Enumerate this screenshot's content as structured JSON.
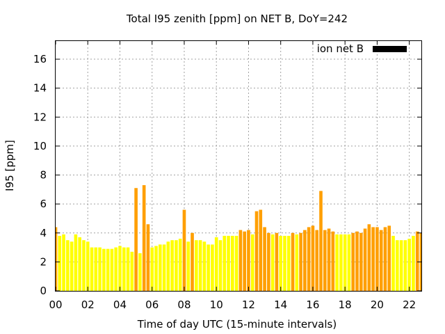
{
  "chart_data": {
    "type": "bar",
    "title": "Total I95 zenith [ppm] on NET B, DoY=242",
    "xlabel": "Time of day UTC (15-minute intervals)",
    "ylabel": "I95 [ppm]",
    "xlim": [
      0,
      22.75
    ],
    "ylim": [
      0,
      17.3
    ],
    "x_ticks": [
      "00",
      "02",
      "04",
      "06",
      "08",
      "10",
      "12",
      "14",
      "16",
      "18",
      "20",
      "22"
    ],
    "y_ticks": [
      "0",
      "2",
      "4",
      "6",
      "8",
      "10",
      "12",
      "14",
      "16"
    ],
    "grid": true,
    "legend": {
      "label": "ion net B",
      "color": "#000000",
      "placement": "top-right"
    },
    "bar_interval_hours": 0.25,
    "colors": {
      "low": "#ffff00",
      "mid": "#ff9f00",
      "frame": "#000000",
      "grid": "#a0a0a0"
    },
    "values": [
      4.4,
      3.8,
      3.9,
      3.5,
      3.4,
      3.9,
      3.7,
      3.5,
      3.4,
      3.0,
      3.0,
      3.0,
      2.9,
      2.9,
      2.9,
      3.0,
      3.1,
      3.0,
      3.0,
      2.7,
      7.1,
      2.6,
      7.3,
      4.6,
      3.0,
      3.1,
      3.2,
      3.2,
      3.4,
      3.5,
      3.5,
      3.6,
      5.6,
      3.4,
      4.0,
      3.5,
      3.5,
      3.4,
      3.2,
      3.2,
      3.7,
      3.5,
      3.8,
      3.8,
      3.8,
      3.8,
      4.2,
      4.1,
      4.2,
      3.9,
      5.5,
      5.6,
      4.4,
      4.0,
      3.9,
      4.0,
      3.8,
      3.8,
      3.8,
      4.0,
      3.9,
      4.0,
      4.2,
      4.4,
      4.5,
      4.2,
      6.9,
      4.2,
      4.3,
      4.1,
      3.9,
      3.9,
      3.9,
      3.9,
      4.0,
      4.1,
      4.0,
      4.3,
      4.6,
      4.4,
      4.4,
      4.2,
      4.4,
      4.5,
      3.8,
      3.5,
      3.5,
      3.5,
      3.6,
      3.8,
      4.1,
      4.0
    ]
  }
}
